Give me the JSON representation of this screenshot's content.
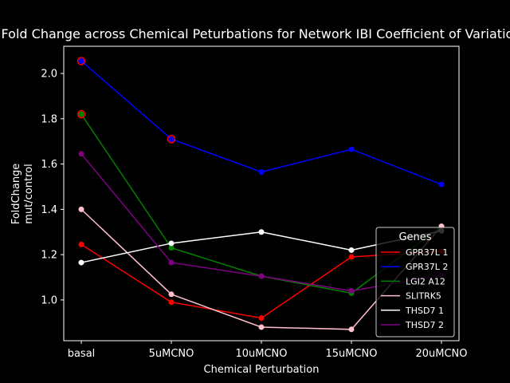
{
  "chart_data": {
    "type": "line",
    "title": "Fold Change across Chemical Peturbations for Network IBI Coefficient of Variation",
    "xlabel": "Chemical Perturbation",
    "ylabel_line1": "FoldChange",
    "ylabel_line2": "mut/control",
    "categories": [
      "basal",
      "5uMCNO",
      "10uMCNO",
      "15uMCNO",
      "20uMCNO"
    ],
    "ylim": [
      0.82,
      2.12
    ],
    "yticks": [
      1.0,
      1.2,
      1.4,
      1.6,
      1.8,
      2.0
    ],
    "ytick_labels": [
      "1.0",
      "1.2",
      "1.4",
      "1.6",
      "1.8",
      "2.0"
    ],
    "grid": false,
    "background": "#000000",
    "legend": {
      "title": "Genes",
      "placement": "bottom-right"
    },
    "series": [
      {
        "name": "GPR37L 1",
        "color": "#ff0000",
        "values": [
          1.245,
          0.99,
          0.92,
          1.19,
          1.215
        ]
      },
      {
        "name": "GPR37L 2",
        "color": "#0000ff",
        "values": [
          2.055,
          1.71,
          1.565,
          1.665,
          1.51
        ]
      },
      {
        "name": "LGI2 A12",
        "color": "#008000",
        "values": [
          1.82,
          1.23,
          1.105,
          1.03,
          1.325
        ]
      },
      {
        "name": "SLITRK5",
        "color": "#ffc0cb",
        "values": [
          1.4,
          1.025,
          0.88,
          0.87,
          1.325
        ]
      },
      {
        "name": "THSD7 1",
        "color": "#ffffff",
        "values": [
          1.165,
          1.25,
          1.3,
          1.22,
          1.305
        ]
      },
      {
        "name": "THSD7 2",
        "color": "#800080",
        "values": [
          1.645,
          1.165,
          1.105,
          1.04,
          1.11
        ]
      }
    ],
    "highlighted_points": [
      {
        "category": "basal",
        "value": 2.055,
        "color": "#ff0000"
      },
      {
        "category": "basal",
        "value": 1.82,
        "color": "#ff0000"
      },
      {
        "category": "5uMCNO",
        "value": 1.71,
        "color": "#ff0000"
      }
    ]
  }
}
